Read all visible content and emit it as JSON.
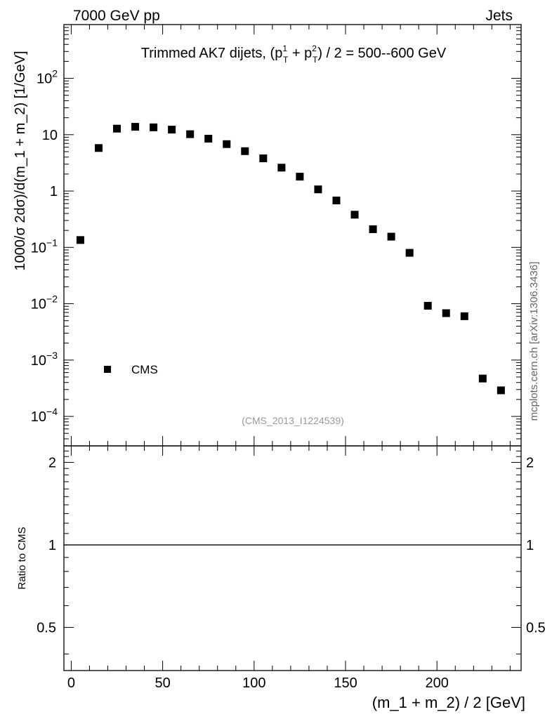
{
  "header": {
    "left": "7000 GeV pp",
    "right": "Jets"
  },
  "side_note": "mcplots.cern.ch [arXiv:1306.3436]",
  "chart_data": [
    {
      "type": "scatter",
      "title": "Trimmed AK7 dijets, (p^1_T + p^2_T) / 2 = 500--600 GeV",
      "title_parts": {
        "lead": "Trimmed AK7 dijets, (p",
        "sup1": "1",
        "sub1": "T",
        "mid": " + p",
        "sup2": "2",
        "sub2": "T",
        "tail": ") / 2 = 500--600 GeV"
      },
      "ylabel": "1000/σ  2dσ)/d(m_1 + m_2) [1/GeV]",
      "yscale": "log",
      "ylim": [
        3e-05,
        900
      ],
      "xlim": [
        -4,
        246
      ],
      "yticks": [
        {
          "value": 0.0001,
          "label": "10",
          "exp": "−4"
        },
        {
          "value": 0.001,
          "label": "10",
          "exp": "−3"
        },
        {
          "value": 0.01,
          "label": "10",
          "exp": "−2"
        },
        {
          "value": 0.1,
          "label": "10",
          "exp": "−1"
        },
        {
          "value": 1,
          "label": "1",
          "exp": ""
        },
        {
          "value": 10,
          "label": "10",
          "exp": ""
        },
        {
          "value": 100,
          "label": "10",
          "exp": "2"
        }
      ],
      "legend": {
        "label": "CMS",
        "position": "bottom-left"
      },
      "annotation": "(CMS_2013_I1224539)",
      "series": [
        {
          "name": "CMS",
          "x": [
            5,
            15,
            25,
            35,
            45,
            55,
            65,
            75,
            85,
            95,
            105,
            115,
            125,
            135,
            145,
            155,
            165,
            175,
            185,
            195,
            205,
            215,
            225,
            235
          ],
          "y": [
            0.135,
            5.8,
            12.8,
            13.8,
            13.5,
            12.3,
            10.2,
            8.5,
            6.8,
            5.1,
            3.8,
            2.6,
            1.8,
            1.07,
            0.68,
            0.38,
            0.21,
            0.155,
            0.08,
            0.0092,
            0.0068,
            0.006,
            0.00047,
            0.00029
          ]
        }
      ]
    },
    {
      "type": "line",
      "ylabel": "Ratio to CMS",
      "xlabel": "(m_1 + m_2) / 2 [GeV]",
      "xlim": [
        -4,
        246
      ],
      "ylim": [
        0.348,
        2.297
      ],
      "yscale": "log",
      "xticks": [
        0,
        50,
        100,
        150,
        200
      ],
      "yticks": [
        {
          "value": 0.5,
          "label": "0.5"
        },
        {
          "value": 1,
          "label": "1"
        },
        {
          "value": 2,
          "label": "2"
        }
      ],
      "reference_line": 1
    }
  ]
}
